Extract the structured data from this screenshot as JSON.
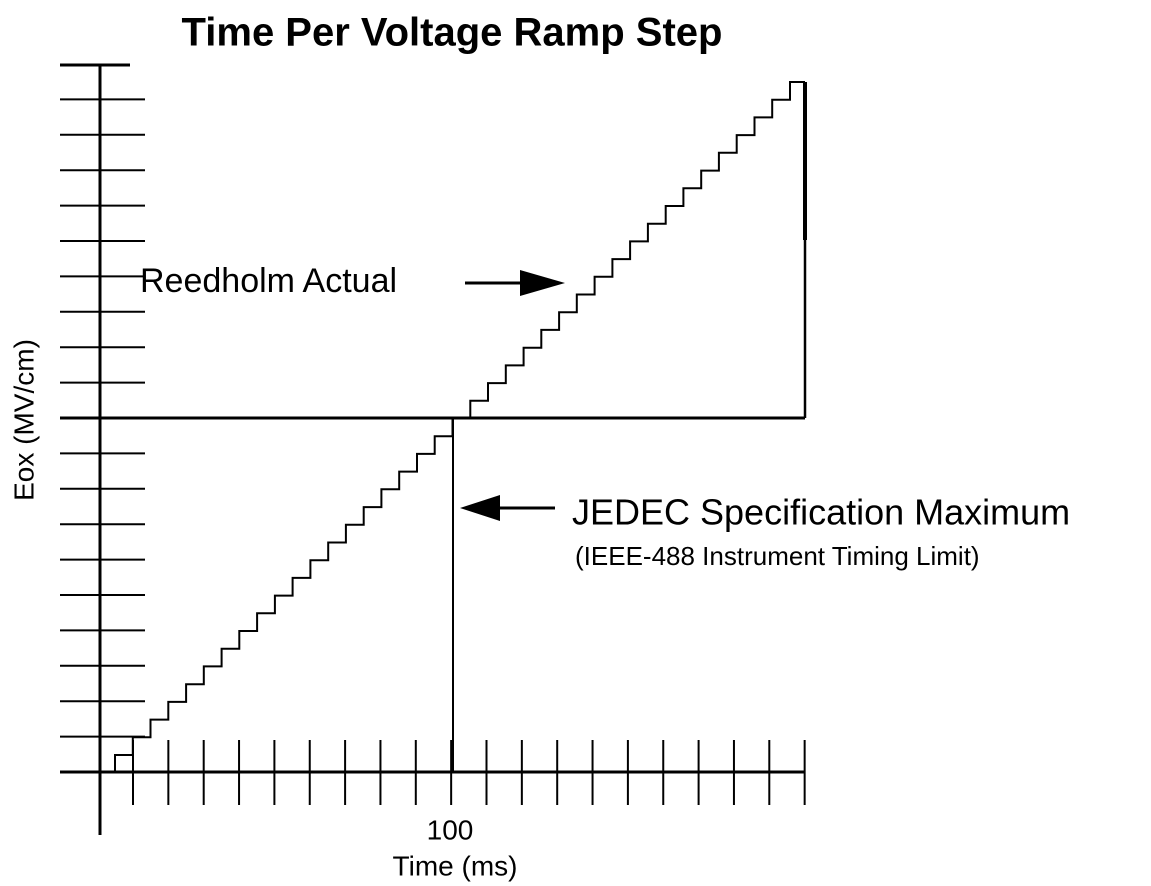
{
  "title": "Time Per Voltage Ramp Step",
  "y_axis_label": "Eox (MV/cm)",
  "x_axis_label": "Time (ms)",
  "x_tick_label": "100",
  "annotations": {
    "actual": "Reedholm Actual",
    "spec": "JEDEC Specification Maximum",
    "spec_note": "(IEEE-488 Instrument Timing Limit)"
  }
}
